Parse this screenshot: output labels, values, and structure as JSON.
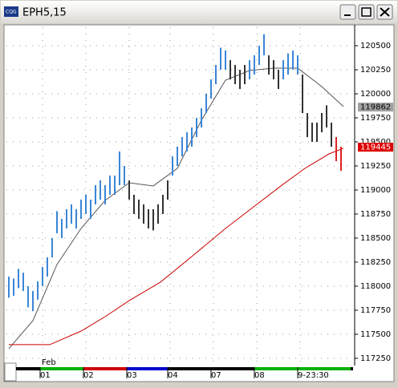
{
  "window_title": "EPH5,15",
  "chart_data": {
    "type": "hilo",
    "x_annotation": "Feb",
    "xlim": [
      -0.5,
      71.5
    ],
    "xticks": [
      {
        "value": 7,
        "label": "01"
      },
      {
        "value": 16,
        "label": "02"
      },
      {
        "value": 25,
        "label": "03"
      },
      {
        "value": 33.5,
        "label": "04"
      },
      {
        "value": 42.5,
        "label": "07"
      },
      {
        "value": 51.5,
        "label": "08"
      },
      {
        "value": 60.5,
        "label": "9-23:30"
      }
    ],
    "ylim": [
      117183,
      120692
    ],
    "yticks": [
      117250,
      117500,
      117750,
      118000,
      118250,
      118500,
      118750,
      119000,
      119250,
      119500,
      119750,
      120000,
      120250,
      120500
    ],
    "grid": true,
    "high": [
      118100,
      118080,
      118180,
      118140,
      118000,
      117950,
      118050,
      118200,
      118300,
      118500,
      118780,
      118700,
      118800,
      118850,
      118800,
      118900,
      118950,
      118900,
      119050,
      119100,
      119050,
      119150,
      119150,
      119400,
      119250,
      119100,
      118950,
      118900,
      118850,
      118800,
      118800,
      118850,
      118950,
      119100,
      119350,
      119450,
      119550,
      119600,
      119650,
      119750,
      119850,
      120000,
      120150,
      120300,
      120480,
      120450,
      120350,
      120300,
      120250,
      120300,
      120350,
      120400,
      120500,
      120620,
      120400,
      120350,
      120250,
      120350,
      120420,
      120450,
      120400,
      120200,
      119800,
      119700,
      119700,
      119800,
      119880,
      119700,
      119550,
      119450
    ],
    "low": [
      117880,
      117900,
      117980,
      117950,
      117780,
      117740,
      117860,
      118000,
      118100,
      118300,
      118550,
      118500,
      118600,
      118650,
      118600,
      118700,
      118750,
      118700,
      118850,
      118900,
      118850,
      118950,
      118950,
      119050,
      119050,
      118900,
      118750,
      118700,
      118650,
      118600,
      118580,
      118650,
      118750,
      118900,
      119150,
      119250,
      119350,
      119400,
      119450,
      119550,
      119650,
      119800,
      119950,
      120100,
      120250,
      120250,
      120150,
      120100,
      120050,
      120100,
      120150,
      120200,
      120300,
      120400,
      120200,
      120150,
      120050,
      120150,
      120200,
      120250,
      120200,
      119800,
      119550,
      119500,
      119500,
      119600,
      119650,
      119450,
      119300,
      119200
    ],
    "bar_colors": [
      "#3a86d8",
      "#3a86d8",
      "#3a86d8",
      "#3a86d8",
      "#3a86d8",
      "#3a86d8",
      "#3a86d8",
      "#3a86d8",
      "#3a86d8",
      "#3a86d8",
      "#3a86d8",
      "#3a86d8",
      "#3a86d8",
      "#3a86d8",
      "#3a86d8",
      "#3a86d8",
      "#3a86d8",
      "#3a86d8",
      "#3a86d8",
      "#3a86d8",
      "#3a86d8",
      "#3a86d8",
      "#3a86d8",
      "#3a86d8",
      "#3a86d8",
      "#333333",
      "#333333",
      "#333333",
      "#333333",
      "#333333",
      "#333333",
      "#333333",
      "#333333",
      "#333333",
      "#3a86d8",
      "#3a86d8",
      "#3a86d8",
      "#3a86d8",
      "#3a86d8",
      "#3a86d8",
      "#3a86d8",
      "#3a86d8",
      "#3a86d8",
      "#3a86d8",
      "#3a86d8",
      "#3a86d8",
      "#333333",
      "#333333",
      "#333333",
      "#333333",
      "#3a86d8",
      "#3a86d8",
      "#3a86d8",
      "#3a86d8",
      "#333333",
      "#333333",
      "#333333",
      "#3a86d8",
      "#3a86d8",
      "#3a86d8",
      "#3a86d8",
      "#333333",
      "#333333",
      "#333333",
      "#333333",
      "#333333",
      "#333333",
      "#333333",
      "#dd2222",
      "#dd2222"
    ],
    "lines": [
      {
        "color": "#555555",
        "x": [
          0,
          5,
          10,
          15,
          20,
          25,
          30,
          35,
          40,
          45,
          50,
          55,
          60,
          65,
          69.5
        ],
        "values": [
          117350,
          117642,
          118225,
          118600,
          118892,
          119075,
          119042,
          119225,
          119725,
          120142,
          120242,
          120267,
          120267,
          120075,
          119867
        ]
      },
      {
        "color": "#cc0000",
        "x": [
          0,
          8.5,
          15,
          20,
          25,
          31.5,
          38,
          45,
          51.5,
          56.5,
          61.5,
          66.5,
          69.5
        ],
        "values": [
          117392,
          117392,
          117533,
          117683,
          117850,
          118042,
          118308,
          118600,
          118850,
          119042,
          119225,
          119375,
          119433
        ]
      }
    ],
    "price_tags": [
      {
        "value": 119862,
        "color": "#a0a0a0",
        "text_color": "#000000"
      },
      {
        "value": 119445,
        "color": "#dd0000",
        "text_color": "#ffffff"
      }
    ]
  }
}
